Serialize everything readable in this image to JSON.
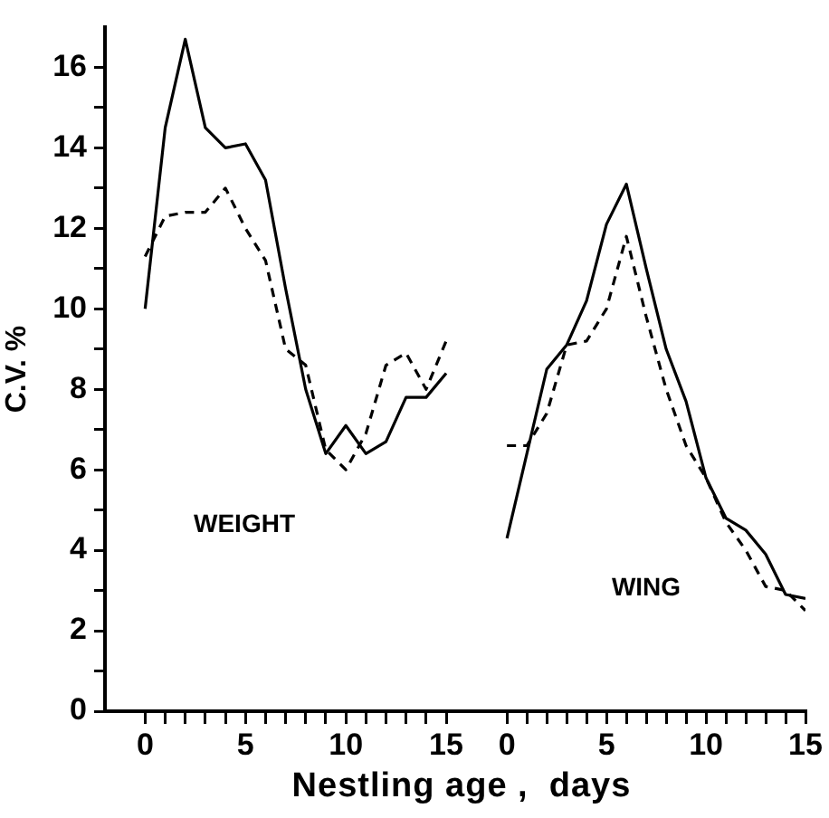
{
  "chart_data": [
    {
      "type": "line",
      "ylabel": "C.V. %",
      "xlabel": "Nestling age ,  days",
      "annotations": [
        "WEIGHT"
      ],
      "grid": false,
      "legend": false,
      "marker": "none",
      "x": [
        0,
        1,
        2,
        3,
        4,
        5,
        6,
        7,
        8,
        9,
        10,
        11,
        12,
        13,
        14,
        15
      ],
      "xlim": [
        -2,
        32.9
      ],
      "xticks": [
        0,
        {
          "value": 1,
          "label": null
        },
        {
          "value": 2,
          "label": null
        },
        {
          "value": 3,
          "label": null
        },
        {
          "value": 4,
          "label": null
        },
        5,
        {
          "value": 6,
          "label": null
        },
        {
          "value": 7,
          "label": null
        },
        {
          "value": 8,
          "label": null
        },
        {
          "value": 9,
          "label": null
        },
        10,
        {
          "value": 11,
          "label": null
        },
        {
          "value": 12,
          "label": null
        },
        {
          "value": 13,
          "label": null
        },
        {
          "value": 14,
          "label": null
        },
        15
      ],
      "ylim": [
        0,
        17
      ],
      "yticks": [
        0,
        {
          "value": 1,
          "label": null
        },
        2,
        {
          "value": 3,
          "label": null
        },
        4,
        {
          "value": 5,
          "label": null
        },
        6,
        {
          "value": 7,
          "label": null
        },
        8,
        {
          "value": 9,
          "label": null
        },
        10,
        {
          "value": 11,
          "label": null
        },
        12,
        {
          "value": 13,
          "label": null
        },
        14,
        {
          "value": 15,
          "label": null
        },
        16
      ],
      "series": [
        {
          "color": "#000000",
          "line_style": "solid",
          "values": [
            10.0,
            14.5,
            16.7,
            14.5,
            14.0,
            14.1,
            13.2,
            10.5,
            8.0,
            6.4,
            7.1,
            6.4,
            6.7,
            7.8,
            7.8,
            8.4
          ]
        },
        {
          "color": "#000000",
          "line_style": "dashed",
          "values": [
            11.3,
            12.3,
            12.4,
            12.4,
            13.0,
            12.0,
            11.2,
            9.0,
            8.6,
            6.5,
            6.0,
            6.9,
            8.6,
            8.9,
            8.0,
            9.2
          ]
        }
      ]
    },
    {
      "type": "line",
      "annotations": [
        "WING"
      ],
      "grid": false,
      "legend": false,
      "marker": "none",
      "tick_labels": "x",
      "x": [
        0,
        1,
        2,
        3,
        4,
        5,
        6,
        7,
        8,
        9,
        10,
        11,
        12,
        13,
        14,
        15
      ],
      "xlim": [
        -20.2,
        15
      ],
      "xticks": [
        0,
        {
          "value": 1,
          "label": null
        },
        {
          "value": 2,
          "label": null
        },
        {
          "value": 3,
          "label": null
        },
        {
          "value": 4,
          "label": null
        },
        5,
        {
          "value": 6,
          "label": null
        },
        {
          "value": 7,
          "label": null
        },
        {
          "value": 8,
          "label": null
        },
        {
          "value": 9,
          "label": null
        },
        10,
        {
          "value": 11,
          "label": null
        },
        {
          "value": 12,
          "label": null
        },
        {
          "value": 13,
          "label": null
        },
        {
          "value": 14,
          "label": null
        },
        15
      ],
      "ylim": [
        0,
        17
      ],
      "series": [
        {
          "color": "#000000",
          "line_style": "solid",
          "values": [
            4.3,
            6.4,
            8.5,
            9.1,
            10.2,
            12.1,
            13.1,
            11.0,
            9.0,
            7.7,
            5.8,
            4.8,
            4.5,
            3.9,
            2.9,
            2.8
          ]
        },
        {
          "color": "#000000",
          "line_style": "dashed",
          "values": [
            6.6,
            6.6,
            7.4,
            9.1,
            9.2,
            10.0,
            11.8,
            9.8,
            8.0,
            6.6,
            5.8,
            4.7,
            4.0,
            3.1,
            3.0,
            2.5
          ]
        }
      ]
    }
  ]
}
